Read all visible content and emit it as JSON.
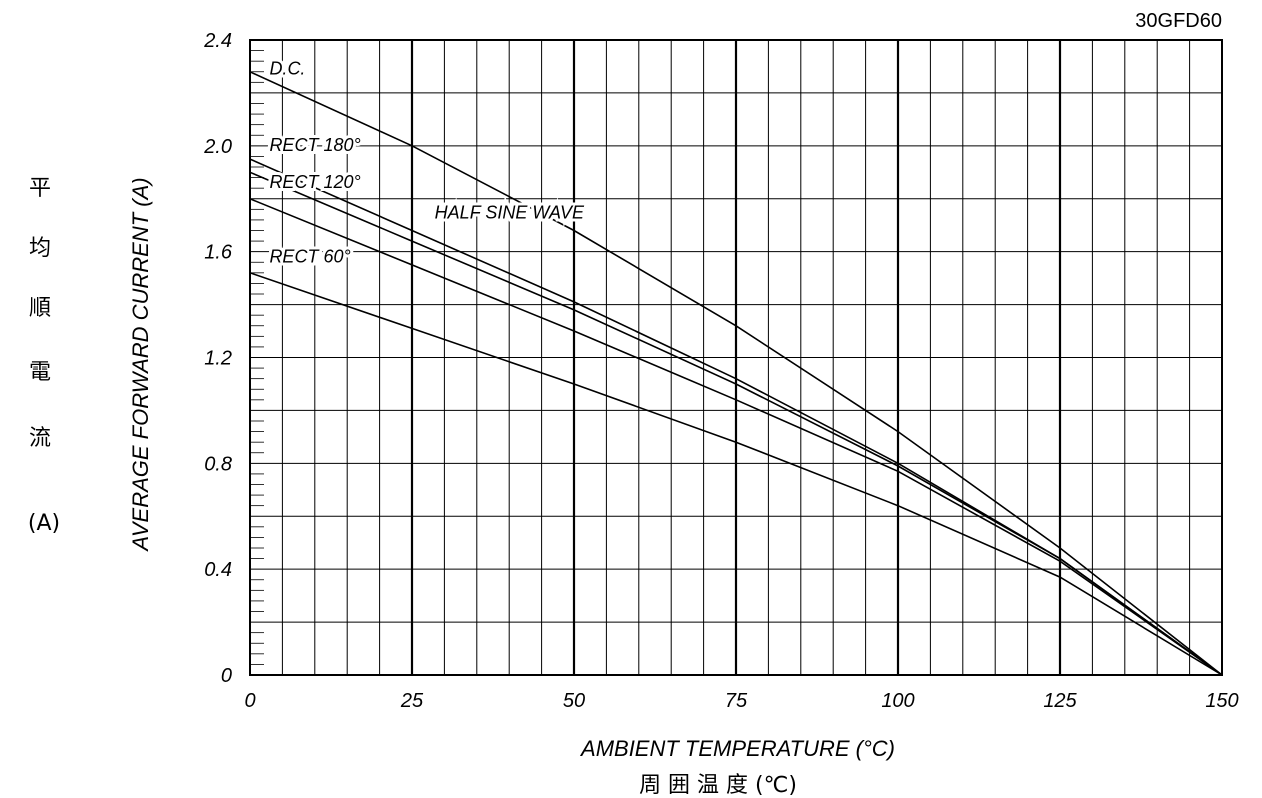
{
  "model": "30GFD60",
  "chart_data": {
    "type": "line",
    "xlabel": "AMBIENT TEMPERATURE (°C)",
    "xlabel_jp": "周 囲 温 度 (℃)",
    "ylabel": "AVERAGE FORWARD CURRENT (A)",
    "ylabel_jp": [
      "平",
      "均",
      "順",
      "電",
      "流"
    ],
    "ylabel_jp_unit": "(A)",
    "xlim": [
      0,
      150
    ],
    "ylim": [
      0,
      2.4
    ],
    "x_ticks": [
      "0",
      "25",
      "50",
      "75",
      "100",
      "125",
      "150"
    ],
    "y_ticks": [
      "0",
      "0.4",
      "0.8",
      "1.2",
      "1.6",
      "2.0",
      "2.4"
    ],
    "grid": true,
    "annotation": "HALF SINE WAVE",
    "series": [
      {
        "name": "D.C.",
        "x": [
          0,
          25,
          50,
          75,
          100,
          125,
          150
        ],
        "y": [
          2.28,
          2.0,
          1.68,
          1.32,
          0.92,
          0.48,
          0.0
        ]
      },
      {
        "name": "RECT 180°",
        "x": [
          0,
          25,
          50,
          75,
          100,
          125,
          150
        ],
        "y": [
          1.95,
          1.68,
          1.41,
          1.12,
          0.8,
          0.44,
          0.0
        ]
      },
      {
        "name": "",
        "x": [
          0,
          25,
          50,
          75,
          100,
          125,
          150
        ],
        "y": [
          1.9,
          1.64,
          1.38,
          1.1,
          0.79,
          0.44,
          0.0
        ]
      },
      {
        "name": "RECT 120°",
        "x": [
          0,
          25,
          50,
          75,
          100,
          125,
          150
        ],
        "y": [
          1.8,
          1.55,
          1.3,
          1.04,
          0.77,
          0.43,
          0.0
        ]
      },
      {
        "name": "RECT 60°",
        "x": [
          0,
          25,
          50,
          75,
          100,
          125,
          150
        ],
        "y": [
          1.52,
          1.31,
          1.1,
          0.88,
          0.64,
          0.37,
          0.0
        ]
      }
    ]
  }
}
